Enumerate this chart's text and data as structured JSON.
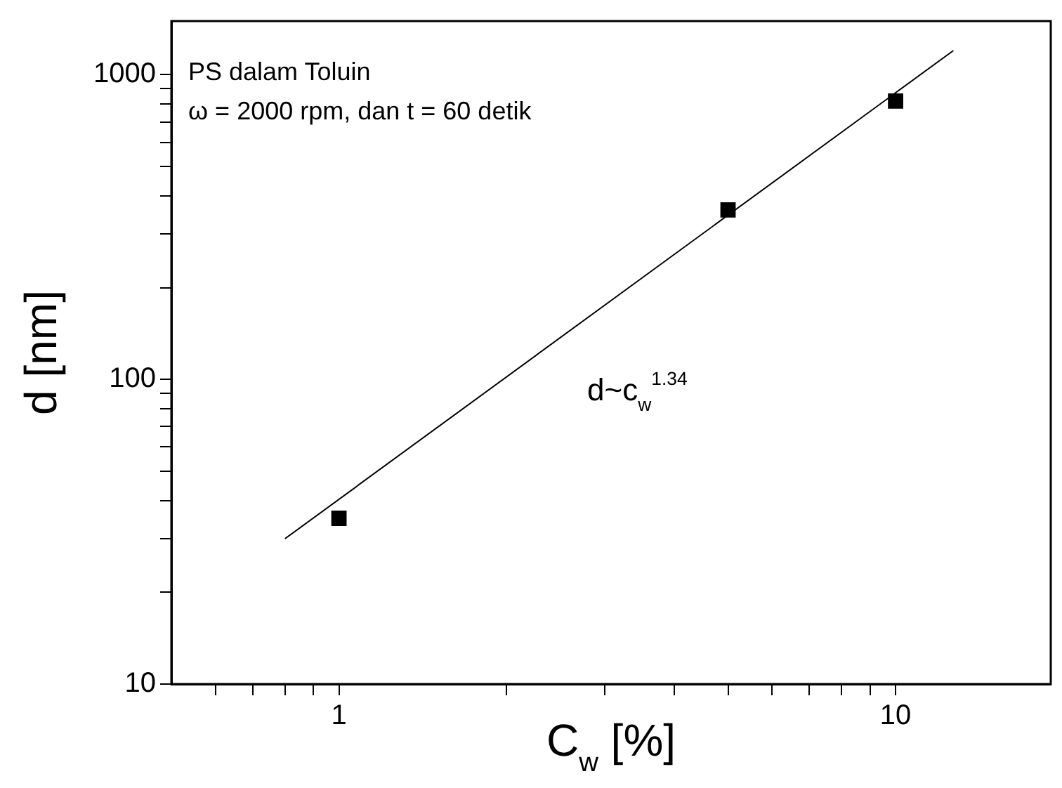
{
  "chart_data": {
    "type": "scatter",
    "xlabel": "C$_{w}$ [%]",
    "ylabel": "d [nm]",
    "log": "xy",
    "marker": "square",
    "xlim": [
      0.5,
      19
    ],
    "ylim": [
      10,
      1500
    ],
    "xticks": [
      {
        "value": 0.6,
        "label": null
      },
      {
        "value": 0.7,
        "label": null
      },
      {
        "value": 0.8,
        "label": null
      },
      {
        "value": 0.9,
        "label": null
      },
      1,
      {
        "value": 2,
        "label": null
      },
      {
        "value": 3,
        "label": null
      },
      {
        "value": 4,
        "label": null
      },
      {
        "value": 5,
        "label": null
      },
      {
        "value": 6,
        "label": null
      },
      {
        "value": 7,
        "label": null
      },
      {
        "value": 8,
        "label": null
      },
      {
        "value": 9,
        "label": null
      },
      10
    ],
    "yticks": [
      10,
      {
        "value": 20,
        "label": null
      },
      {
        "value": 30,
        "label": null
      },
      {
        "value": 40,
        "label": null
      },
      {
        "value": 50,
        "label": null
      },
      {
        "value": 60,
        "label": null
      },
      {
        "value": 70,
        "label": null
      },
      {
        "value": 80,
        "label": null
      },
      {
        "value": 90,
        "label": null
      },
      100,
      {
        "value": 200,
        "label": null
      },
      {
        "value": 300,
        "label": null
      },
      {
        "value": 400,
        "label": null
      },
      {
        "value": 500,
        "label": null
      },
      {
        "value": 600,
        "label": null
      },
      {
        "value": 700,
        "label": null
      },
      {
        "value": 800,
        "label": null
      },
      {
        "value": 900,
        "label": null
      },
      1000
    ],
    "series": [
      {
        "color": "#000000",
        "x": [
          1,
          5,
          10
        ],
        "values": [
          35,
          360,
          820
        ]
      },
      {
        "type": "line",
        "color": "#000000",
        "marker": "none",
        "x": [
          0.8,
          12.7
        ],
        "values": [
          30,
          1200
        ]
      }
    ],
    "annotations": [
      "PS dalam Toluin",
      "ω = 2000 rpm, dan t = 60 detik",
      "d~c$_{w}$$^{1.34}$"
    ]
  }
}
